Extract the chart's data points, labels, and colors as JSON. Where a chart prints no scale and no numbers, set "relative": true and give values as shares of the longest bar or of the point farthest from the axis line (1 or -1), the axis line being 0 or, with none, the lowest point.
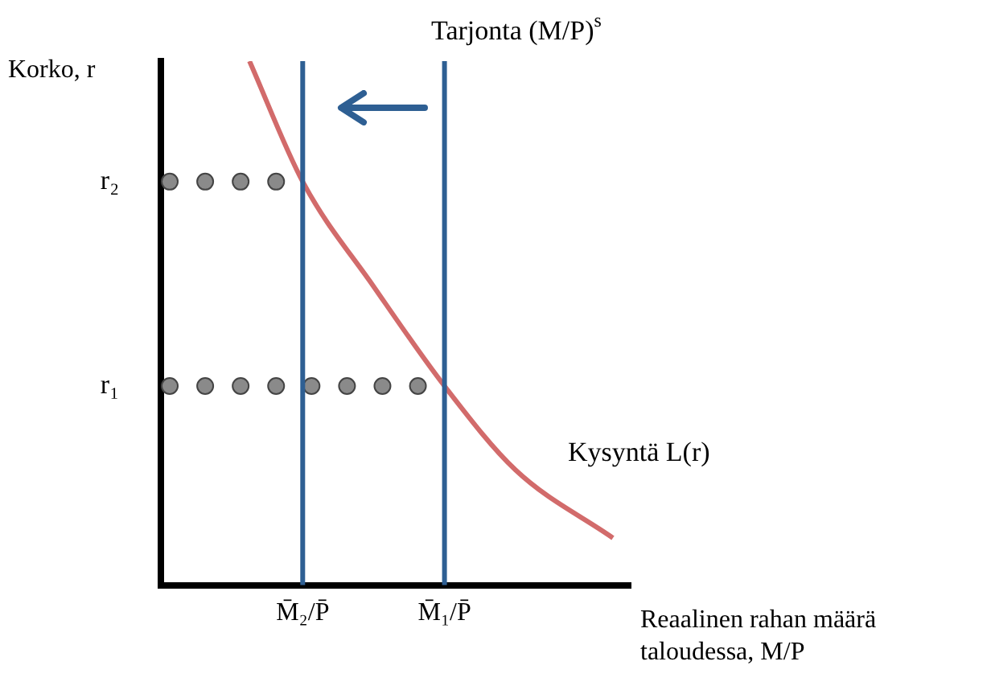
{
  "chart_data": {
    "type": "line",
    "relative": true,
    "ylabel": "Korko, r",
    "xlabel": "Reaalinen rahan määrä taloudessa, M/P",
    "legend": false,
    "grid": false,
    "categories": [
      null,
      null,
      null,
      null,
      null,
      null,
      null,
      null,
      null,
      null,
      null,
      null,
      null,
      null,
      null,
      null,
      "M̄₂/P̄",
      null,
      null,
      null,
      null,
      null,
      null,
      null,
      null,
      null,
      null,
      null,
      null,
      null,
      null,
      null,
      "M̄₁/P̄",
      null,
      null,
      null,
      null,
      null,
      null,
      null,
      null,
      null,
      null,
      null,
      null,
      null,
      null,
      null,
      null,
      null,
      null,
      null,
      null,
      null
    ],
    "series": [
      {
        "color": "#d26b6b",
        "marker": "none",
        "values": [
          null,
          null,
          null,
          null,
          null,
          null,
          null,
          null,
          null,
          null,
          1.0,
          null,
          null,
          null,
          null,
          null,
          0.77,
          null,
          null,
          null,
          null,
          null,
          null,
          null,
          0.57,
          null,
          null,
          null,
          null,
          null,
          null,
          null,
          0.38,
          null,
          null,
          null,
          null,
          null,
          null,
          null,
          0.22,
          null,
          null,
          null,
          null,
          null,
          null,
          null,
          null,
          null,
          null,
          0.09,
          null,
          null
        ]
      },
      {
        "name": "r₂",
        "type": "scatter",
        "color": "#8a8a8a",
        "marker": "circle",
        "values": [
          null,
          0.77,
          null,
          null,
          null,
          0.77,
          null,
          null,
          null,
          0.77,
          null,
          null,
          null,
          0.77,
          null,
          null,
          null,
          null,
          null,
          null,
          null,
          null,
          null,
          null,
          null,
          null,
          null,
          null,
          null,
          null,
          null,
          null,
          null,
          null,
          null,
          null,
          null,
          null,
          null,
          null,
          null,
          null,
          null,
          null,
          null,
          null,
          null,
          null,
          null,
          null,
          null,
          null,
          null,
          null
        ]
      },
      {
        "name": "r₁",
        "type": "scatter",
        "color": "#8a8a8a",
        "marker": "circle",
        "values": [
          null,
          0.38,
          null,
          null,
          null,
          0.38,
          null,
          null,
          null,
          0.38,
          null,
          null,
          null,
          0.38,
          null,
          null,
          null,
          0.38,
          null,
          null,
          null,
          0.38,
          null,
          null,
          null,
          0.38,
          null,
          null,
          null,
          0.38,
          null,
          null,
          null,
          null,
          null,
          null,
          null,
          null,
          null,
          null,
          null,
          null,
          null,
          null,
          null,
          null,
          null,
          null,
          null,
          null,
          null,
          null,
          null,
          null
        ]
      }
    ],
    "ref_lines": [
      {
        "axis": "x",
        "value": "M̄₂/P̄",
        "color": "#2e5f93"
      },
      {
        "axis": "x",
        "value": "M̄₁/P̄",
        "color": "#2e5f93"
      }
    ],
    "annotations": [
      "Tarjonta (M/P)$^{s}$",
      "Kysyntä L(r)"
    ]
  }
}
